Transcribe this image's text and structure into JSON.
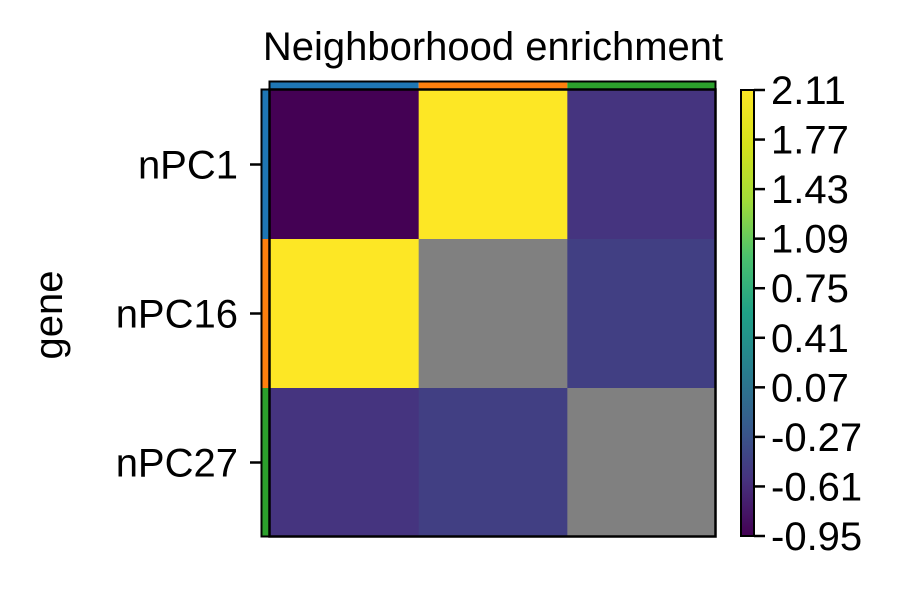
{
  "chart_data": {
    "type": "heatmap",
    "title": "Neighborhood enrichment",
    "ylabel": "gene",
    "row_labels": [
      "nPC1",
      "nPC16",
      "nPC27"
    ],
    "group_colors": [
      "#1f77b4",
      "#ff7f0e",
      "#2ca02c"
    ],
    "values": [
      [
        -0.95,
        2.11,
        -0.55
      ],
      [
        2.11,
        null,
        -0.45
      ],
      [
        -0.55,
        -0.45,
        null
      ]
    ],
    "nan_color": "#808080",
    "colormap": "viridis",
    "vmin": -0.95,
    "vmax": 2.11,
    "colorbar_ticks": [
      "2.11",
      "1.77",
      "1.43",
      "1.09",
      "0.75",
      "0.41",
      "0.07",
      "-0.27",
      "-0.61",
      "-0.95"
    ]
  }
}
